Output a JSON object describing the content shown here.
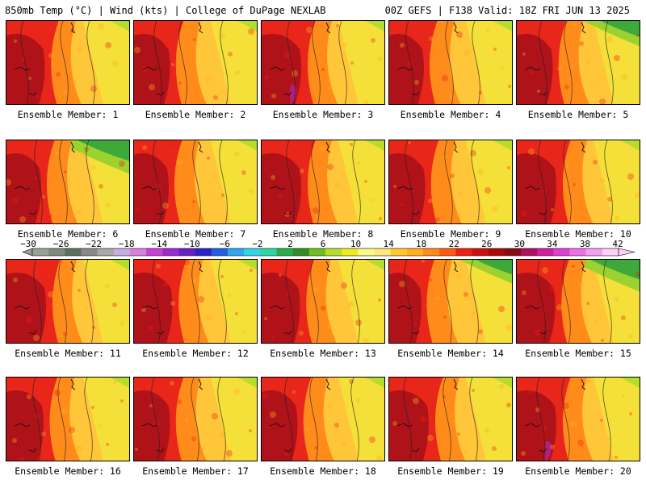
{
  "header": {
    "left": "850mb Temp (°C) | Wind (kts) | College of DuPage NEXLAB",
    "right": "00Z GEFS | F138 Valid: 18Z FRI JUN 13 2025"
  },
  "member_label_prefix": "Ensemble Member:",
  "members": [
    {
      "number": "1",
      "hot": 0.85,
      "cool_ne": 0.1
    },
    {
      "number": "2",
      "hot": 0.75,
      "cool_ne": 0.1
    },
    {
      "number": "3",
      "hot": 0.9,
      "cool_ne": 0.15,
      "magenta": true
    },
    {
      "number": "4",
      "hot": 0.7,
      "cool_ne": 0.1
    },
    {
      "number": "5",
      "hot": 0.75,
      "cool_ne": 0.35
    },
    {
      "number": "6",
      "hot": 0.7,
      "cool_ne": 0.6
    },
    {
      "number": "7",
      "hot": 0.7,
      "cool_ne": 0.1
    },
    {
      "number": "8",
      "hot": 0.9,
      "cool_ne": 0.1
    },
    {
      "number": "9",
      "hot": 0.75,
      "cool_ne": 0.2
    },
    {
      "number": "10",
      "hot": 0.9,
      "cool_ne": 0.1
    },
    {
      "number": "11",
      "hot": 0.9,
      "cool_ne": 0.1
    },
    {
      "number": "12",
      "hot": 0.85,
      "cool_ne": 0.05
    },
    {
      "number": "13",
      "hot": 0.85,
      "cool_ne": 0.1
    },
    {
      "number": "14",
      "hot": 0.6,
      "cool_ne": 0.3
    },
    {
      "number": "15",
      "hot": 0.85,
      "cool_ne": 0.55
    },
    {
      "number": "16",
      "hot": 0.8,
      "cool_ne": 0.1
    },
    {
      "number": "17",
      "hot": 0.75,
      "cool_ne": 0.1
    },
    {
      "number": "18",
      "hot": 0.75,
      "cool_ne": 0.1
    },
    {
      "number": "19",
      "hot": 0.9,
      "cool_ne": 0.05
    },
    {
      "number": "20",
      "hot": 0.9,
      "cool_ne": 0.1,
      "magenta": true
    }
  ],
  "colorbar": {
    "labels": [
      "-30",
      "-26",
      "-22",
      "-18",
      "-14",
      "-10",
      "-6",
      "-2",
      "2",
      "6",
      "10",
      "14",
      "18",
      "22",
      "26",
      "30",
      "34",
      "38",
      "42"
    ],
    "colors": [
      "#9aa097",
      "#7f8a7c",
      "#5f6f5e",
      "#888888",
      "#a8a8a8",
      "#c6aee0",
      "#d97fe0",
      "#c940d6",
      "#9b2bd0",
      "#6a1fc4",
      "#2a23c8",
      "#1f5fe0",
      "#2fa6f0",
      "#30d6e8",
      "#2fd6a4",
      "#25b04a",
      "#2f8f20",
      "#6fbf20",
      "#b8dc2a",
      "#ecec20",
      "#fafa8c",
      "#ffe680",
      "#ffc830",
      "#ffb020",
      "#ff8c1a",
      "#ff5a10",
      "#ee2010",
      "#cc1010",
      "#aa0a0a",
      "#8a0a14",
      "#b01060",
      "#d020a0",
      "#e040d0",
      "#f070e8",
      "#f4a0f0",
      "#ffd0f8"
    ]
  }
}
